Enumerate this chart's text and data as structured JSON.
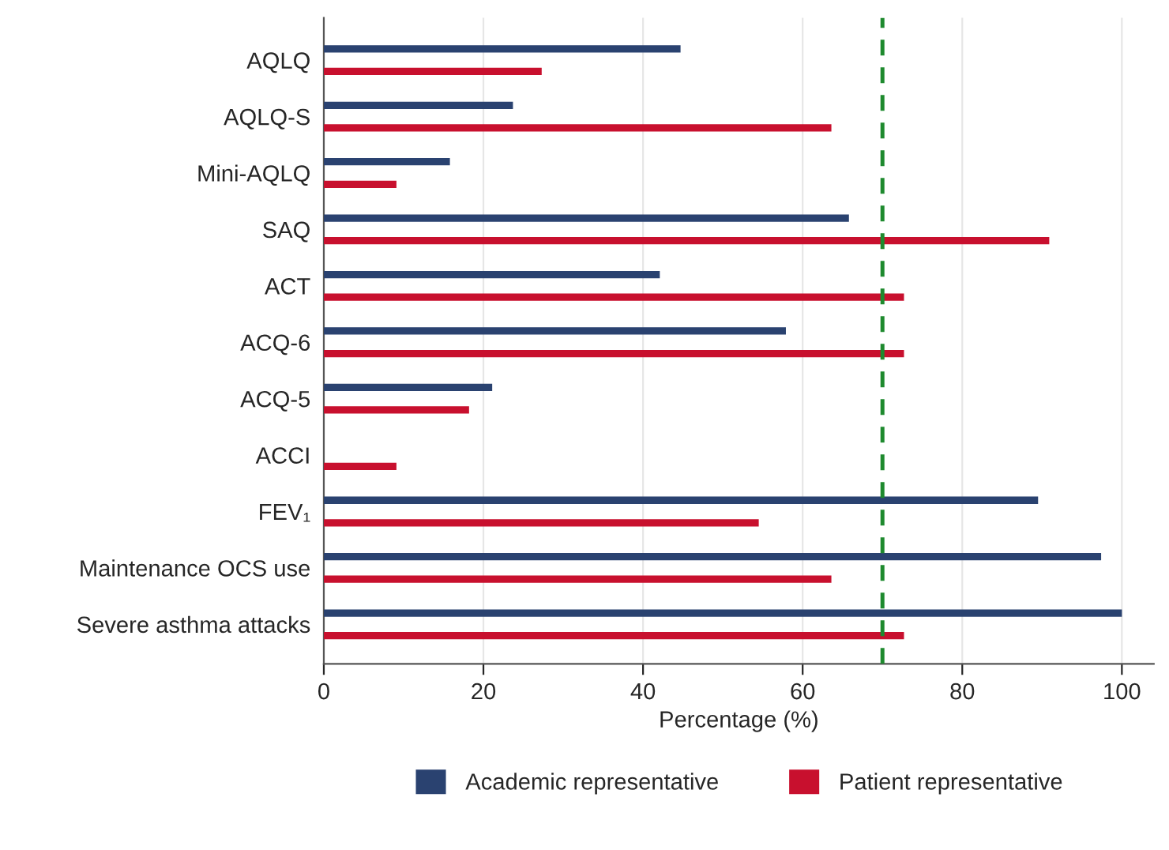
{
  "chart_data": {
    "type": "bar",
    "orientation": "horizontal",
    "xlabel": "Percentage (%)",
    "categories": [
      "AQLQ",
      "AQLQ-S",
      "Mini-AQLQ",
      "SAQ",
      "ACT",
      "ACQ-6",
      "ACQ-5",
      "ACCI",
      "FEV₁",
      "Maintenance OCS use",
      "Severe asthma attacks"
    ],
    "series": [
      {
        "name": "Academic representative",
        "color": "#2a4270",
        "values": [
          44.7,
          23.7,
          15.8,
          65.8,
          42.1,
          57.9,
          21.1,
          null,
          89.5,
          97.4,
          100
        ]
      },
      {
        "name": "Patient representative",
        "color": "#c8102e",
        "values": [
          27.3,
          63.6,
          9.1,
          90.9,
          72.7,
          72.7,
          18.2,
          9.1,
          54.5,
          63.6,
          72.7
        ]
      }
    ],
    "xlim": [
      0,
      104
    ],
    "xticks": [
      0,
      20,
      40,
      60,
      80,
      100
    ],
    "grid": "x",
    "legend": "bottom",
    "ref_lines": [
      {
        "axis": "x",
        "value": 70,
        "color": "#1e8a2e",
        "line_style": "dashed"
      }
    ]
  }
}
